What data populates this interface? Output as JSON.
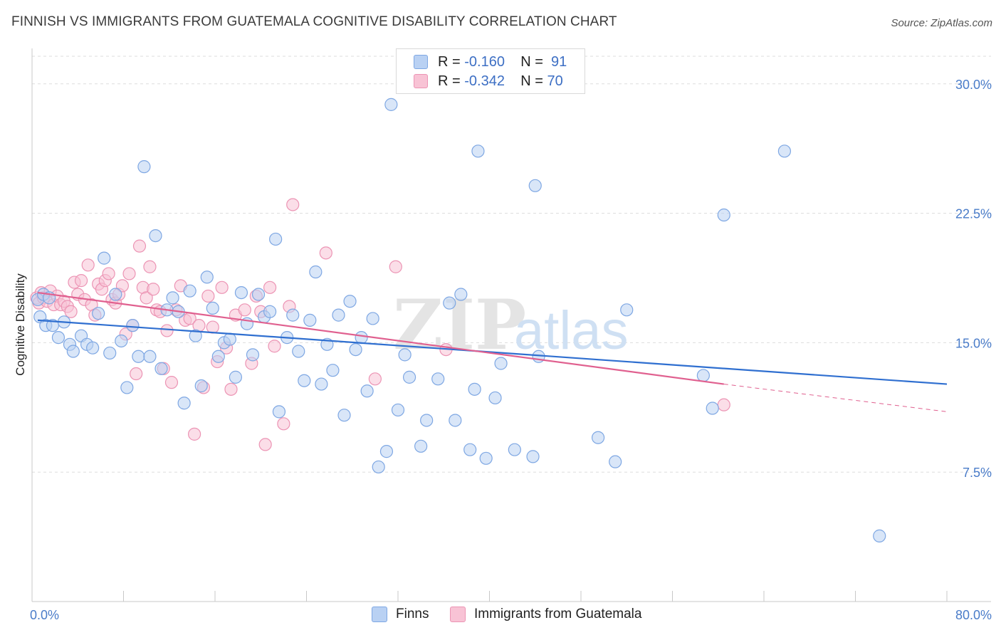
{
  "title": "FINNISH VS IMMIGRANTS FROM GUATEMALA COGNITIVE DISABILITY CORRELATION CHART",
  "source": "Source: ZipAtlas.com",
  "watermark": {
    "zip": "ZIP",
    "atlas": "atlas"
  },
  "legend": {
    "rows": [
      {
        "r_label": "R =",
        "r_value": "-0.160",
        "n_label": "N =",
        "n_value": "91"
      },
      {
        "r_label": "R =",
        "r_value": "-0.342",
        "n_label": "N =",
        "n_value": "70"
      }
    ]
  },
  "colors": {
    "finns_fill": "#b9d1f3",
    "finns_stroke": "#7ea7e3",
    "finns_line": "#2f6fd0",
    "guat_fill": "#f8c3d5",
    "guat_stroke": "#ec94b4",
    "guat_line": "#e0608f",
    "tick_text": "#4a7cc9",
    "grid": "#dddddd"
  },
  "chart_data": {
    "type": "scatter",
    "title": "FINNISH VS IMMIGRANTS FROM GUATEMALA COGNITIVE DISABILITY CORRELATION CHART",
    "xlabel": "",
    "ylabel": "Cognitive Disability",
    "xlim": [
      0,
      80
    ],
    "ylim": [
      0,
      31.6
    ],
    "x_tick_labels": [
      "0.0%",
      "80.0%"
    ],
    "y_ticks": [
      7.5,
      15.0,
      22.5,
      30.0
    ],
    "y_tick_labels": [
      "7.5%",
      "15.0%",
      "22.5%",
      "30.0%"
    ],
    "grid": "horizontal dashed",
    "legend_position": "top-center",
    "series": [
      {
        "name": "Finns",
        "R": -0.16,
        "N": 91,
        "trend": {
          "x0": 0.5,
          "y0": 16.3,
          "x1": 80,
          "y1": 12.6
        },
        "points": [
          [
            0.5,
            17.5
          ],
          [
            0.7,
            16.5
          ],
          [
            1.0,
            17.8
          ],
          [
            1.2,
            16.0
          ],
          [
            1.5,
            17.6
          ],
          [
            1.8,
            16.0
          ],
          [
            2.3,
            15.3
          ],
          [
            2.8,
            16.2
          ],
          [
            3.3,
            14.9
          ],
          [
            3.6,
            14.5
          ],
          [
            4.3,
            15.4
          ],
          [
            4.8,
            14.9
          ],
          [
            5.3,
            14.7
          ],
          [
            5.8,
            16.7
          ],
          [
            6.3,
            19.9
          ],
          [
            6.8,
            14.4
          ],
          [
            7.3,
            17.8
          ],
          [
            7.8,
            15.1
          ],
          [
            8.3,
            12.4
          ],
          [
            8.8,
            16.0
          ],
          [
            9.3,
            14.2
          ],
          [
            9.8,
            25.2
          ],
          [
            10.3,
            14.2
          ],
          [
            10.8,
            21.2
          ],
          [
            11.3,
            13.5
          ],
          [
            11.8,
            16.9
          ],
          [
            12.3,
            17.6
          ],
          [
            12.8,
            16.8
          ],
          [
            13.3,
            11.5
          ],
          [
            13.8,
            18.0
          ],
          [
            14.3,
            15.4
          ],
          [
            14.8,
            12.5
          ],
          [
            15.3,
            18.8
          ],
          [
            15.8,
            17.0
          ],
          [
            16.3,
            14.2
          ],
          [
            16.8,
            15.0
          ],
          [
            17.3,
            15.2
          ],
          [
            17.8,
            13.0
          ],
          [
            18.3,
            17.9
          ],
          [
            18.8,
            16.1
          ],
          [
            19.3,
            14.3
          ],
          [
            19.8,
            17.8
          ],
          [
            20.3,
            16.5
          ],
          [
            20.8,
            16.8
          ],
          [
            21.3,
            21.0
          ],
          [
            21.6,
            11.0
          ],
          [
            22.3,
            15.3
          ],
          [
            22.8,
            16.6
          ],
          [
            23.3,
            14.5
          ],
          [
            23.8,
            12.8
          ],
          [
            24.3,
            16.3
          ],
          [
            24.8,
            19.1
          ],
          [
            25.3,
            12.6
          ],
          [
            25.8,
            14.9
          ],
          [
            26.3,
            13.4
          ],
          [
            26.8,
            16.6
          ],
          [
            27.3,
            10.8
          ],
          [
            27.8,
            17.4
          ],
          [
            28.3,
            14.6
          ],
          [
            28.8,
            15.3
          ],
          [
            29.3,
            12.2
          ],
          [
            29.8,
            16.4
          ],
          [
            30.3,
            7.8
          ],
          [
            31.0,
            8.7
          ],
          [
            31.4,
            28.8
          ],
          [
            32.0,
            11.1
          ],
          [
            32.6,
            14.3
          ],
          [
            33.0,
            13.0
          ],
          [
            34.0,
            9.0
          ],
          [
            34.5,
            10.5
          ],
          [
            35.5,
            12.9
          ],
          [
            36.5,
            17.3
          ],
          [
            37.0,
            10.5
          ],
          [
            37.5,
            17.8
          ],
          [
            38.3,
            8.8
          ],
          [
            38.7,
            12.3
          ],
          [
            39.0,
            26.1
          ],
          [
            39.7,
            8.3
          ],
          [
            40.5,
            11.8
          ],
          [
            41.0,
            13.8
          ],
          [
            42.2,
            8.8
          ],
          [
            43.8,
            8.4
          ],
          [
            44.0,
            24.1
          ],
          [
            44.3,
            14.2
          ],
          [
            49.5,
            9.5
          ],
          [
            51.0,
            8.1
          ],
          [
            52.0,
            16.9
          ],
          [
            58.7,
            13.1
          ],
          [
            59.5,
            11.2
          ],
          [
            60.5,
            22.4
          ],
          [
            65.8,
            26.1
          ],
          [
            74.1,
            3.8
          ]
        ]
      },
      {
        "name": "Immigrants from Guatemala",
        "R": -0.342,
        "N": 70,
        "trend": {
          "x0": 0.5,
          "y0": 17.9,
          "x1": 60.5,
          "y1": 12.6
        },
        "trend_dashed": {
          "x0": 60.5,
          "y0": 12.6,
          "x1": 80,
          "y1": 11.0
        },
        "points": [
          [
            0.4,
            17.6
          ],
          [
            0.6,
            17.3
          ],
          [
            0.8,
            17.9
          ],
          [
            1.0,
            17.6
          ],
          [
            1.3,
            17.4
          ],
          [
            1.6,
            18.0
          ],
          [
            1.9,
            17.2
          ],
          [
            2.2,
            17.7
          ],
          [
            2.5,
            17.2
          ],
          [
            2.8,
            17.4
          ],
          [
            3.1,
            17.1
          ],
          [
            3.4,
            16.8
          ],
          [
            3.7,
            18.5
          ],
          [
            4.0,
            17.8
          ],
          [
            4.3,
            18.6
          ],
          [
            4.6,
            17.5
          ],
          [
            4.9,
            19.5
          ],
          [
            5.2,
            17.2
          ],
          [
            5.5,
            16.6
          ],
          [
            5.8,
            18.4
          ],
          [
            6.1,
            18.1
          ],
          [
            6.4,
            18.6
          ],
          [
            6.7,
            19.0
          ],
          [
            7.0,
            17.5
          ],
          [
            7.3,
            17.3
          ],
          [
            7.6,
            17.8
          ],
          [
            7.9,
            18.3
          ],
          [
            8.2,
            15.5
          ],
          [
            8.5,
            19.0
          ],
          [
            8.8,
            16.0
          ],
          [
            9.1,
            13.2
          ],
          [
            9.4,
            20.6
          ],
          [
            9.7,
            18.2
          ],
          [
            10.0,
            17.6
          ],
          [
            10.3,
            19.4
          ],
          [
            10.6,
            18.1
          ],
          [
            10.9,
            16.9
          ],
          [
            11.2,
            16.8
          ],
          [
            11.5,
            13.5
          ],
          [
            11.8,
            15.7
          ],
          [
            12.2,
            12.7
          ],
          [
            12.6,
            16.9
          ],
          [
            13.0,
            18.3
          ],
          [
            13.4,
            16.3
          ],
          [
            13.8,
            16.4
          ],
          [
            14.2,
            9.7
          ],
          [
            14.6,
            16.0
          ],
          [
            15.0,
            12.4
          ],
          [
            15.4,
            17.7
          ],
          [
            15.8,
            15.9
          ],
          [
            16.2,
            13.9
          ],
          [
            16.6,
            18.2
          ],
          [
            17.0,
            14.7
          ],
          [
            17.4,
            12.3
          ],
          [
            17.8,
            16.6
          ],
          [
            18.6,
            16.9
          ],
          [
            19.2,
            13.8
          ],
          [
            19.6,
            17.7
          ],
          [
            20.0,
            16.8
          ],
          [
            20.4,
            9.1
          ],
          [
            20.8,
            18.2
          ],
          [
            21.2,
            14.8
          ],
          [
            22.0,
            10.3
          ],
          [
            22.5,
            17.1
          ],
          [
            22.8,
            23.0
          ],
          [
            25.7,
            20.2
          ],
          [
            30.0,
            12.9
          ],
          [
            31.8,
            19.4
          ],
          [
            36.2,
            14.6
          ],
          [
            60.5,
            11.4
          ]
        ]
      }
    ]
  }
}
